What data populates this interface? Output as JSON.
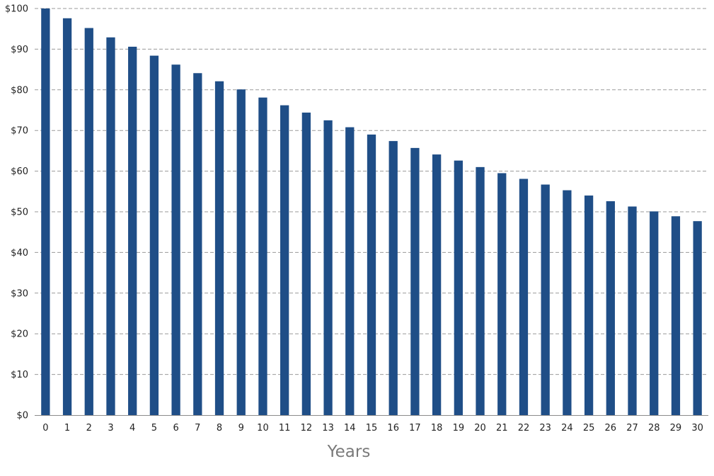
{
  "chart_data": {
    "type": "bar",
    "title": "",
    "xlabel": "Years",
    "ylabel": "",
    "categories": [
      "0",
      "1",
      "2",
      "3",
      "4",
      "5",
      "6",
      "7",
      "8",
      "9",
      "10",
      "11",
      "12",
      "13",
      "14",
      "15",
      "16",
      "17",
      "18",
      "19",
      "20",
      "21",
      "22",
      "23",
      "24",
      "25",
      "26",
      "27",
      "28",
      "29",
      "30"
    ],
    "values": [
      100,
      97.6,
      95.2,
      92.9,
      90.6,
      88.4,
      86.2,
      84.1,
      82.1,
      80.1,
      78.1,
      76.2,
      74.4,
      72.5,
      70.8,
      69.0,
      67.4,
      65.7,
      64.1,
      62.6,
      61.0,
      59.5,
      58.1,
      56.7,
      55.3,
      54.0,
      52.6,
      51.3,
      50.1,
      48.9,
      47.7
    ],
    "ylim": [
      0,
      100
    ],
    "yticks": [
      0,
      10,
      20,
      30,
      40,
      50,
      60,
      70,
      80,
      90,
      100
    ],
    "ytick_labels": [
      "$0",
      "$10",
      "$20",
      "$30",
      "$40",
      "$50",
      "$60",
      "$70",
      "$80",
      "$90",
      "$100"
    ],
    "grid": true,
    "legend": "none",
    "bar_color": "#1f4e87"
  }
}
